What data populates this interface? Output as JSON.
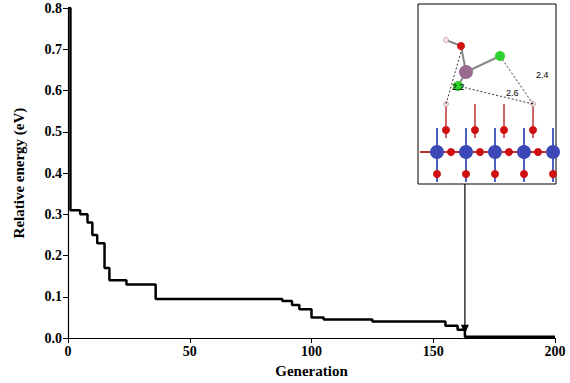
{
  "chart_data": {
    "type": "line",
    "x_label": "Generation",
    "y_label": "Relative energy (eV)",
    "x": [
      0,
      1,
      5,
      8,
      10,
      12,
      15,
      17,
      22,
      24,
      35,
      36,
      70,
      88,
      92,
      95,
      100,
      105,
      125,
      150,
      155,
      160,
      163,
      200
    ],
    "values": [
      0.8,
      0.31,
      0.3,
      0.28,
      0.25,
      0.23,
      0.17,
      0.14,
      0.14,
      0.13,
      0.13,
      0.095,
      0.095,
      0.09,
      0.08,
      0.07,
      0.05,
      0.045,
      0.04,
      0.04,
      0.03,
      0.02,
      0.003,
      0.003
    ],
    "color": "#000000",
    "line_style": "step",
    "grid": false,
    "xlim": [
      0,
      200
    ],
    "xticks": [
      0,
      50,
      100,
      150,
      200
    ],
    "ylim": [
      0,
      0.8
    ],
    "yticks": [
      {
        "value": 0,
        "label": "0.0"
      },
      {
        "value": 0.1,
        "label": "0.1"
      },
      {
        "value": 0.2,
        "label": "0.2"
      },
      {
        "value": 0.3,
        "label": "0.3"
      },
      {
        "value": 0.4,
        "label": "0.4"
      },
      {
        "value": 0.5,
        "label": "0.5"
      },
      {
        "value": 0.6,
        "label": "0.6"
      },
      {
        "value": 0.7,
        "label": "0.7"
      },
      {
        "value": 0.8,
        "label": "0.8"
      }
    ],
    "annotations": [
      "2.2",
      "2.6",
      "2.4"
    ]
  }
}
